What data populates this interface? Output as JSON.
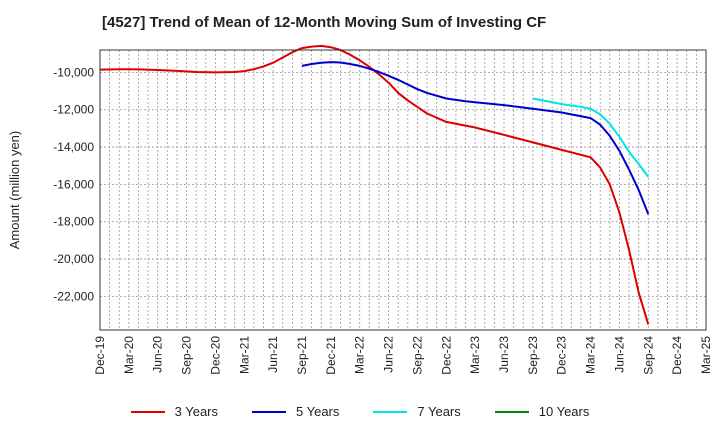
{
  "chart_data": {
    "type": "line",
    "title": "[4527]  Trend of Mean of 12-Month Moving Sum of Investing CF",
    "xlabel": "",
    "ylabel": "Amount (million yen)",
    "ylim": [
      -23800,
      -8800
    ],
    "yticks": [
      -10000,
      -12000,
      -14000,
      -16000,
      -18000,
      -20000,
      -22000
    ],
    "ytick_labels": [
      "-10,000",
      "-12,000",
      "-14,000",
      "-16,000",
      "-18,000",
      "-20,000",
      "-22,000"
    ],
    "xlim": [
      0,
      63
    ],
    "xticks": [
      0,
      3,
      6,
      9,
      12,
      15,
      18,
      21,
      24,
      27,
      30,
      33,
      36,
      39,
      42,
      45,
      48,
      51,
      54,
      57,
      60,
      63
    ],
    "xtick_labels": [
      "Dec-19",
      "Mar-20",
      "Jun-20",
      "Sep-20",
      "Dec-20",
      "Mar-21",
      "Jun-21",
      "Sep-21",
      "Dec-21",
      "Mar-22",
      "Jun-22",
      "Sep-22",
      "Dec-22",
      "Mar-23",
      "Jun-23",
      "Sep-23",
      "Dec-23",
      "Mar-24",
      "Jun-24",
      "Sep-24",
      "Dec-24",
      "Mar-25"
    ],
    "grid": true,
    "legend_position": "bottom",
    "series": [
      {
        "name": "3 Years",
        "color": "#dd0000",
        "x": [
          0,
          2,
          4,
          6,
          8,
          10,
          12,
          14,
          15,
          16,
          17,
          18,
          19,
          20,
          21,
          22,
          23,
          24,
          25,
          26,
          27,
          28,
          29,
          30,
          31,
          32,
          33,
          34,
          36,
          38,
          39,
          42,
          45,
          48,
          51,
          52,
          53,
          54,
          55,
          56,
          57
        ],
        "y": [
          -9850,
          -9830,
          -9840,
          -9870,
          -9920,
          -9980,
          -10000,
          -9980,
          -9930,
          -9830,
          -9680,
          -9480,
          -9200,
          -8920,
          -8700,
          -8620,
          -8580,
          -8650,
          -8800,
          -9050,
          -9350,
          -9700,
          -10100,
          -10550,
          -11100,
          -11500,
          -11850,
          -12200,
          -12650,
          -12850,
          -12950,
          -13350,
          -13750,
          -14150,
          -14550,
          -15100,
          -16000,
          -17500,
          -19500,
          -21800,
          -23500
        ]
      },
      {
        "name": "5 Years",
        "color": "#0000cc",
        "x": [
          21,
          22,
          23,
          24,
          25,
          26,
          27,
          28,
          29,
          30,
          31,
          32,
          33,
          34,
          36,
          38,
          39,
          42,
          45,
          48,
          51,
          52,
          53,
          54,
          55,
          56,
          57
        ],
        "y": [
          -9650,
          -9550,
          -9480,
          -9450,
          -9470,
          -9550,
          -9650,
          -9800,
          -9980,
          -10180,
          -10400,
          -10650,
          -10900,
          -11100,
          -11400,
          -11550,
          -11600,
          -11750,
          -11950,
          -12150,
          -12450,
          -12800,
          -13400,
          -14200,
          -15200,
          -16300,
          -17600
        ]
      },
      {
        "name": "7 Years",
        "color": "#00e5e5",
        "x": [
          45,
          48,
          50,
          51,
          52,
          53,
          54,
          55,
          56,
          57
        ],
        "y": [
          -11400,
          -11700,
          -11850,
          -11950,
          -12250,
          -12750,
          -13450,
          -14250,
          -14900,
          -15600
        ]
      },
      {
        "name": "10 Years",
        "color": "#008800",
        "x": [],
        "y": []
      }
    ]
  }
}
